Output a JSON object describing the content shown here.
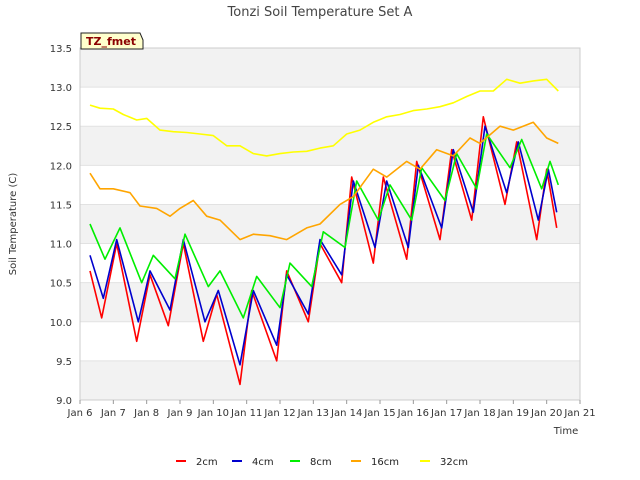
{
  "chart_data": {
    "type": "line",
    "title": "Tonzi Soil Temperature Set A",
    "xlabel": "Time",
    "ylabel": "Soil Temperature (C)",
    "badge": "TZ_fmet",
    "xlim": [
      6,
      21
    ],
    "ylim": [
      9.0,
      13.5
    ],
    "x_tick_values": [
      6,
      7,
      8,
      9,
      10,
      11,
      12,
      13,
      14,
      15,
      16,
      17,
      18,
      19,
      20,
      21
    ],
    "x_tick_labels": [
      "Jan 6",
      "Jan 7",
      "Jan 8",
      "Jan 9",
      "Jan 10",
      "Jan 11",
      "Jan 12",
      "Jan 13",
      "Jan 14",
      "Jan 15",
      "Jan 16",
      "Jan 17",
      "Jan 18",
      "Jan 19",
      "Jan 20",
      "Jan 21"
    ],
    "y_tick_values": [
      9.0,
      9.5,
      10.0,
      10.5,
      11.0,
      11.5,
      12.0,
      12.5,
      13.0,
      13.5
    ],
    "y_tick_labels": [
      "9.0",
      "9.5",
      "10.0",
      "10.5",
      "11.0",
      "11.5",
      "12.0",
      "12.5",
      "13.0",
      "13.5"
    ],
    "grid": true,
    "legend_position": "bottom",
    "series": [
      {
        "name": "2cm",
        "color": "#ff0000",
        "x": [
          6.3,
          6.65,
          7.1,
          7.7,
          8.1,
          8.65,
          9.1,
          9.7,
          10.1,
          10.8,
          11.15,
          11.9,
          12.2,
          12.85,
          13.2,
          13.85,
          14.15,
          14.8,
          15.1,
          15.8,
          16.1,
          16.8,
          17.15,
          17.75,
          18.1,
          18.75,
          19.1,
          19.7,
          20.0,
          20.3
        ],
        "y": [
          10.65,
          10.05,
          11.0,
          9.75,
          10.6,
          9.95,
          11.0,
          9.75,
          10.35,
          9.2,
          10.4,
          9.5,
          10.65,
          10.0,
          11.0,
          10.5,
          11.85,
          10.75,
          11.85,
          10.8,
          12.05,
          11.05,
          12.2,
          11.3,
          12.62,
          11.5,
          12.3,
          11.05,
          11.95,
          11.2
        ]
      },
      {
        "name": "4cm",
        "color": "#0000cd",
        "x": [
          6.3,
          6.7,
          7.1,
          7.75,
          8.1,
          8.7,
          9.1,
          9.75,
          10.15,
          10.8,
          11.2,
          11.9,
          12.2,
          12.85,
          13.2,
          13.85,
          14.2,
          14.85,
          15.2,
          15.85,
          16.15,
          16.85,
          17.2,
          17.8,
          18.15,
          18.8,
          19.15,
          19.75,
          20.05,
          20.3
        ],
        "y": [
          10.85,
          10.3,
          11.05,
          10.0,
          10.65,
          10.15,
          11.05,
          10.0,
          10.4,
          9.45,
          10.4,
          9.7,
          10.6,
          10.1,
          11.05,
          10.6,
          11.8,
          10.95,
          11.8,
          10.95,
          12.0,
          11.2,
          12.2,
          11.4,
          12.5,
          11.65,
          12.3,
          11.3,
          11.95,
          11.4
        ]
      },
      {
        "name": "8cm",
        "color": "#00ee00",
        "x": [
          6.3,
          6.75,
          7.2,
          7.85,
          8.2,
          8.85,
          9.15,
          9.85,
          10.2,
          10.9,
          11.3,
          12.0,
          12.3,
          12.95,
          13.3,
          13.95,
          14.3,
          14.95,
          15.3,
          15.95,
          16.25,
          16.95,
          17.3,
          17.9,
          18.2,
          18.9,
          19.25,
          19.85,
          20.1,
          20.35
        ],
        "y": [
          11.25,
          10.8,
          11.2,
          10.5,
          10.85,
          10.55,
          11.12,
          10.45,
          10.65,
          10.05,
          10.58,
          10.18,
          10.75,
          10.45,
          11.15,
          10.95,
          11.8,
          11.3,
          11.75,
          11.3,
          11.97,
          11.55,
          12.15,
          11.7,
          12.4,
          11.97,
          12.33,
          11.7,
          12.05,
          11.75
        ]
      },
      {
        "name": "16cm",
        "color": "#ffa500",
        "x": [
          6.3,
          6.6,
          7.0,
          7.5,
          7.8,
          8.3,
          8.7,
          9.0,
          9.4,
          9.8,
          10.2,
          10.8,
          11.2,
          11.7,
          12.2,
          12.8,
          13.2,
          13.8,
          14.2,
          14.8,
          15.2,
          15.8,
          16.2,
          16.7,
          17.2,
          17.7,
          18.0,
          18.6,
          19.0,
          19.6,
          20.0,
          20.35
        ],
        "y": [
          11.9,
          11.7,
          11.7,
          11.65,
          11.48,
          11.45,
          11.35,
          11.45,
          11.55,
          11.35,
          11.3,
          11.05,
          11.12,
          11.1,
          11.05,
          11.2,
          11.25,
          11.5,
          11.6,
          11.95,
          11.85,
          12.05,
          11.95,
          12.2,
          12.12,
          12.35,
          12.28,
          12.5,
          12.45,
          12.55,
          12.35,
          12.28
        ]
      },
      {
        "name": "32cm",
        "color": "#ffff00",
        "x": [
          6.3,
          6.6,
          7.0,
          7.3,
          7.7,
          8.0,
          8.4,
          8.8,
          9.2,
          9.6,
          10.0,
          10.4,
          10.8,
          11.2,
          11.6,
          12.0,
          12.4,
          12.8,
          13.2,
          13.6,
          14.0,
          14.4,
          14.8,
          15.2,
          15.6,
          16.0,
          16.4,
          16.8,
          17.2,
          17.6,
          18.0,
          18.4,
          18.8,
          19.2,
          19.6,
          20.0,
          20.35
        ],
        "y": [
          12.77,
          12.73,
          12.72,
          12.65,
          12.58,
          12.6,
          12.45,
          12.43,
          12.42,
          12.4,
          12.38,
          12.25,
          12.25,
          12.15,
          12.12,
          12.15,
          12.17,
          12.18,
          12.22,
          12.25,
          12.4,
          12.45,
          12.55,
          12.62,
          12.65,
          12.7,
          12.72,
          12.75,
          12.8,
          12.88,
          12.95,
          12.95,
          13.1,
          13.05,
          13.08,
          13.1,
          12.95
        ]
      }
    ]
  }
}
